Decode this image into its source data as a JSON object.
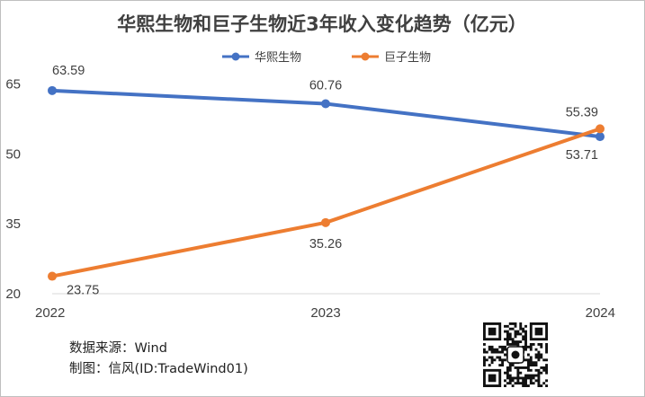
{
  "chart_data": {
    "type": "line",
    "title": "华熙生物和巨子生物近3年收入变化趋势（亿元）",
    "categories": [
      "2022",
      "2023",
      "2024"
    ],
    "series": [
      {
        "name": "华熙生物",
        "values": [
          63.59,
          60.76,
          53.71
        ],
        "labels": [
          "63.59",
          "60.76",
          "53.71"
        ],
        "color": "#4472C4"
      },
      {
        "name": "巨子生物",
        "values": [
          23.75,
          35.26,
          55.39
        ],
        "labels": [
          "23.75",
          "35.26",
          "55.39"
        ],
        "color": "#ED7D31"
      }
    ],
    "y_ticks": [
      "20",
      "35",
      "50",
      "65"
    ],
    "ylim": [
      20,
      68
    ],
    "xlabel": "",
    "ylabel": "",
    "grid": false,
    "legend": "top-center"
  },
  "footer": {
    "source": "数据来源：Wind",
    "author": "制图：信风(ID:TradeWind01)"
  }
}
